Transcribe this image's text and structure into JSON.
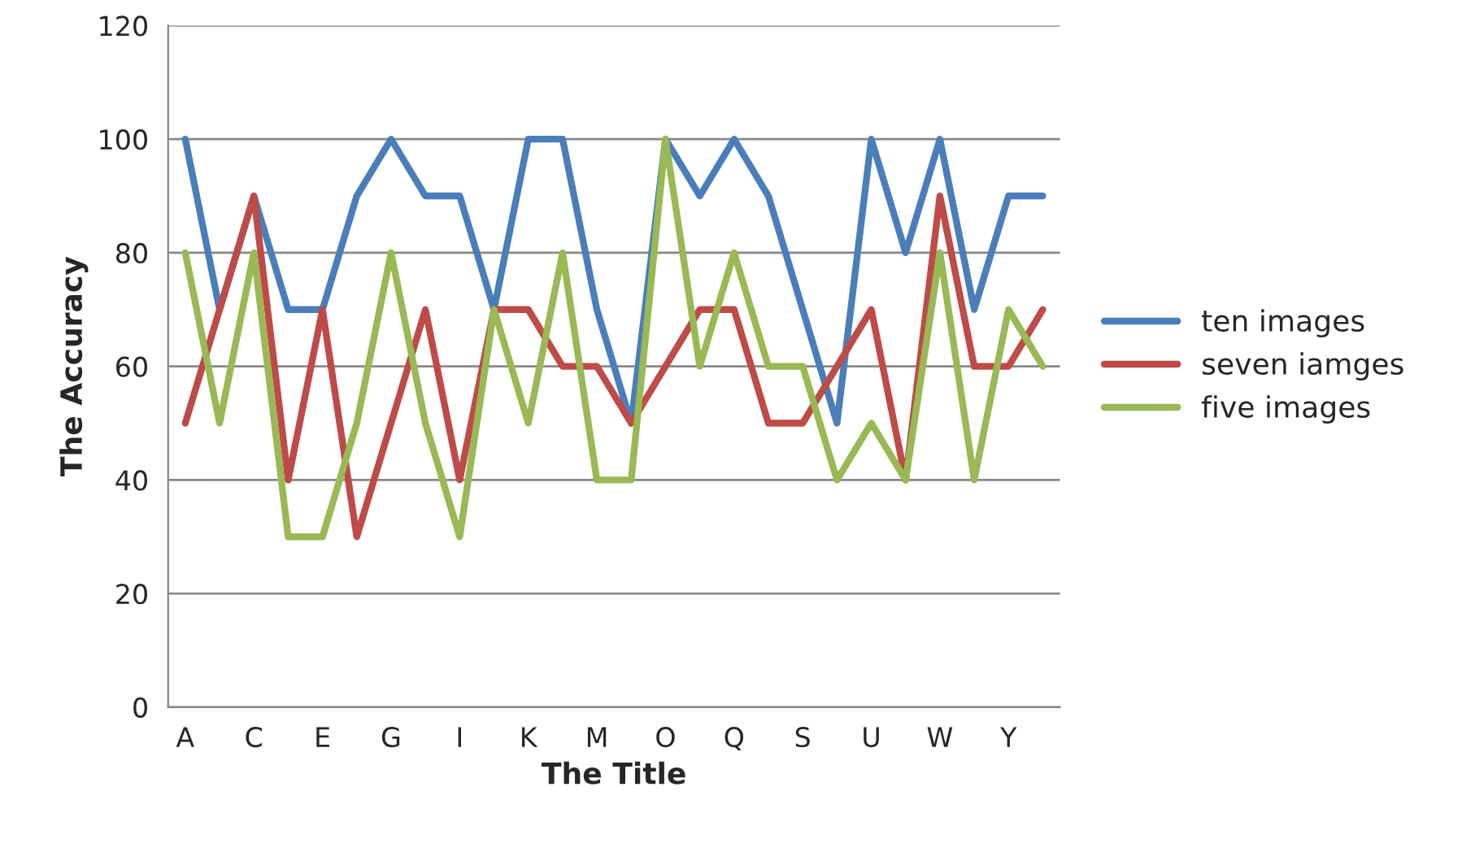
{
  "chart_data": {
    "type": "line",
    "xlabel": "The Title",
    "ylabel": "The Accuracy",
    "categories": [
      "A",
      null,
      "C",
      null,
      "E",
      null,
      "G",
      null,
      "I",
      null,
      "K",
      null,
      "M",
      null,
      "O",
      null,
      "Q",
      null,
      "S",
      null,
      "U",
      null,
      "W",
      null,
      "Y",
      null
    ],
    "series": [
      {
        "name": "ten images",
        "color": "#4a7ebb",
        "values": [
          100,
          70,
          90,
          70,
          70,
          90,
          100,
          90,
          90,
          70,
          100,
          100,
          70,
          50,
          100,
          90,
          100,
          90,
          70,
          50,
          100,
          80,
          100,
          70,
          90,
          90
        ]
      },
      {
        "name": "seven iamges",
        "color": "#be4b48",
        "values": [
          50,
          70,
          90,
          40,
          70,
          30,
          50,
          70,
          40,
          70,
          70,
          60,
          60,
          50,
          60,
          70,
          70,
          50,
          50,
          60,
          70,
          40,
          90,
          60,
          60,
          70
        ]
      },
      {
        "name": "five images",
        "color": "#98b954",
        "values": [
          80,
          50,
          80,
          30,
          30,
          50,
          80,
          50,
          30,
          70,
          50,
          80,
          40,
          40,
          100,
          60,
          80,
          60,
          60,
          40,
          50,
          40,
          80,
          40,
          70,
          60
        ]
      }
    ],
    "ylim": [
      0,
      120
    ],
    "yticks": [
      0,
      20,
      40,
      60,
      80,
      100,
      120
    ],
    "grid": "y",
    "legend": "right",
    "marker": "none",
    "line_style": "solid"
  }
}
